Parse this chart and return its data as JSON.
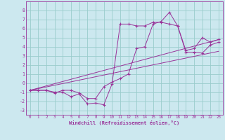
{
  "background_color": "#cce8ef",
  "grid_color": "#99cccc",
  "line_color": "#993399",
  "marker": "+",
  "xlabel": "Windchill (Refroidissement éolien,°C)",
  "xlim": [
    -0.5,
    23.5
  ],
  "ylim": [
    -3.5,
    9.0
  ],
  "xticks": [
    0,
    1,
    2,
    3,
    4,
    5,
    6,
    7,
    8,
    9,
    10,
    11,
    12,
    13,
    14,
    15,
    16,
    17,
    18,
    19,
    20,
    21,
    22,
    23
  ],
  "yticks": [
    -3,
    -2,
    -1,
    0,
    1,
    2,
    3,
    4,
    5,
    6,
    7,
    8
  ],
  "series": [
    {
      "x": [
        0,
        1,
        2,
        3,
        4,
        5,
        6,
        7,
        8,
        9,
        10,
        11,
        12,
        13,
        14,
        15,
        16,
        17,
        18,
        19,
        20,
        21,
        22,
        23
      ],
      "y": [
        -0.8,
        -0.8,
        -0.8,
        -1.1,
        -0.8,
        -0.8,
        -1.1,
        -1.7,
        -1.7,
        -0.4,
        0.1,
        0.5,
        1.0,
        3.8,
        4.0,
        6.5,
        6.8,
        7.8,
        6.3,
        3.6,
        3.8,
        5.0,
        4.5,
        4.8
      ],
      "with_markers": true
    },
    {
      "x": [
        0,
        1,
        2,
        3,
        4,
        5,
        6,
        7,
        8,
        9,
        10,
        11,
        12,
        13,
        14,
        15,
        16,
        17,
        18,
        19,
        20,
        21,
        22,
        23
      ],
      "y": [
        -0.8,
        -0.8,
        -0.8,
        -1.0,
        -1.0,
        -1.5,
        -1.2,
        -2.3,
        -2.2,
        -2.4,
        -0.1,
        6.5,
        6.5,
        6.3,
        6.3,
        6.7,
        6.7,
        6.5,
        6.3,
        3.4,
        3.4,
        3.3,
        4.2,
        4.5
      ],
      "with_markers": true
    },
    {
      "x": [
        0,
        23
      ],
      "y": [
        -0.8,
        4.8
      ],
      "with_markers": false
    },
    {
      "x": [
        0,
        23
      ],
      "y": [
        -0.8,
        3.5
      ],
      "with_markers": false
    }
  ]
}
